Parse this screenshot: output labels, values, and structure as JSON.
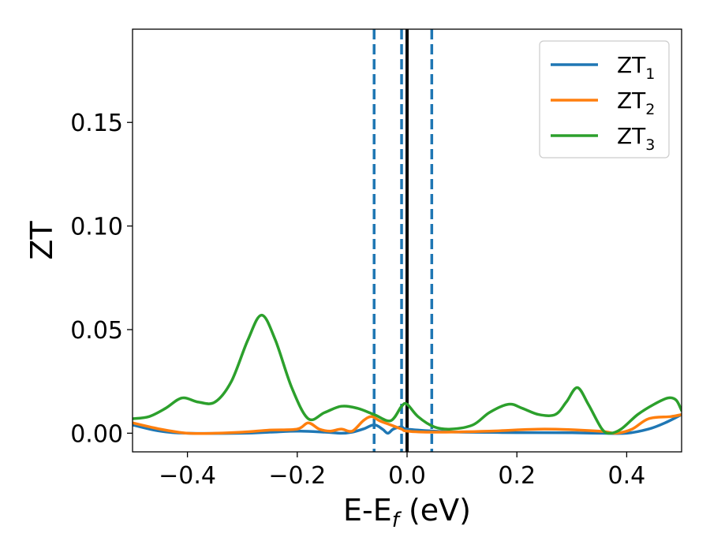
{
  "chart_data": {
    "type": "line",
    "xlabel_main": "E-E",
    "xlabel_sub": "f",
    "xlabel_unit": " (eV)",
    "ylabel": "ZT",
    "xlim": [
      -0.5,
      0.5
    ],
    "ylim": [
      -0.009,
      0.195
    ],
    "xticks": [
      {
        "value": -0.4,
        "label": "−0.4"
      },
      {
        "value": -0.2,
        "label": "−0.2"
      },
      {
        "value": 0.0,
        "label": "0.0"
      },
      {
        "value": 0.2,
        "label": "0.2"
      },
      {
        "value": 0.4,
        "label": "0.4"
      }
    ],
    "yticks": [
      {
        "value": 0.0,
        "label": "0.00"
      },
      {
        "value": 0.05,
        "label": "0.05"
      },
      {
        "value": 0.1,
        "label": "0.10"
      },
      {
        "value": 0.15,
        "label": "0.15"
      }
    ],
    "grid": false,
    "legend_position": "top-right",
    "vlines": [
      {
        "x": -0.06,
        "style": "dashed",
        "color": "#1f77b4"
      },
      {
        "x": -0.01,
        "style": "dashed",
        "color": "#1f77b4"
      },
      {
        "x": 0.045,
        "style": "dashed",
        "color": "#1f77b4"
      },
      {
        "x": 0.0,
        "style": "solid",
        "color": "#000000"
      }
    ],
    "series": [
      {
        "name": "ZT",
        "name_sub": "1",
        "color": "#1f77b4",
        "points": [
          [
            -0.5,
            0.004
          ],
          [
            -0.45,
            0.001
          ],
          [
            -0.4,
            0.0
          ],
          [
            -0.3,
            0.0
          ],
          [
            -0.25,
            0.0005
          ],
          [
            -0.2,
            0.001
          ],
          [
            -0.15,
            0.0005
          ],
          [
            -0.12,
            0.0
          ],
          [
            -0.1,
            0.0005
          ],
          [
            -0.08,
            0.002
          ],
          [
            -0.06,
            0.004
          ],
          [
            -0.045,
            0.002
          ],
          [
            -0.035,
            0.0
          ],
          [
            -0.025,
            0.002
          ],
          [
            -0.01,
            0.003
          ],
          [
            0.0,
            0.002
          ],
          [
            0.05,
            0.001
          ],
          [
            0.1,
            0.0005
          ],
          [
            0.2,
            0.0003
          ],
          [
            0.3,
            0.0002
          ],
          [
            0.35,
            0.0
          ],
          [
            0.4,
            0.0
          ],
          [
            0.44,
            0.002
          ],
          [
            0.47,
            0.005
          ],
          [
            0.5,
            0.009
          ]
        ]
      },
      {
        "name": "ZT",
        "name_sub": "2",
        "color": "#ff7f0e",
        "points": [
          [
            -0.5,
            0.005
          ],
          [
            -0.45,
            0.002
          ],
          [
            -0.4,
            0.0
          ],
          [
            -0.35,
            0.0
          ],
          [
            -0.3,
            0.0005
          ],
          [
            -0.25,
            0.0015
          ],
          [
            -0.2,
            0.002
          ],
          [
            -0.18,
            0.005
          ],
          [
            -0.16,
            0.002
          ],
          [
            -0.14,
            0.001
          ],
          [
            -0.12,
            0.002
          ],
          [
            -0.1,
            0.001
          ],
          [
            -0.08,
            0.006
          ],
          [
            -0.065,
            0.008
          ],
          [
            -0.05,
            0.006
          ],
          [
            -0.03,
            0.004
          ],
          [
            -0.01,
            0.002
          ],
          [
            0.0,
            0.001
          ],
          [
            0.05,
            0.0005
          ],
          [
            0.15,
            0.001
          ],
          [
            0.25,
            0.002
          ],
          [
            0.35,
            0.001
          ],
          [
            0.38,
            0.0
          ],
          [
            0.41,
            0.002
          ],
          [
            0.44,
            0.007
          ],
          [
            0.48,
            0.008
          ],
          [
            0.5,
            0.009
          ]
        ]
      },
      {
        "name": "ZT",
        "name_sub": "3",
        "color": "#2ca02c",
        "points": [
          [
            -0.5,
            0.007
          ],
          [
            -0.47,
            0.008
          ],
          [
            -0.44,
            0.012
          ],
          [
            -0.41,
            0.017
          ],
          [
            -0.38,
            0.015
          ],
          [
            -0.35,
            0.015
          ],
          [
            -0.32,
            0.025
          ],
          [
            -0.29,
            0.045
          ],
          [
            -0.265,
            0.057
          ],
          [
            -0.24,
            0.045
          ],
          [
            -0.21,
            0.022
          ],
          [
            -0.18,
            0.007
          ],
          [
            -0.15,
            0.01
          ],
          [
            -0.12,
            0.013
          ],
          [
            -0.09,
            0.012
          ],
          [
            -0.06,
            0.009
          ],
          [
            -0.03,
            0.006
          ],
          [
            -0.01,
            0.013
          ],
          [
            0.0,
            0.014
          ],
          [
            0.02,
            0.008
          ],
          [
            0.05,
            0.003
          ],
          [
            0.08,
            0.002
          ],
          [
            0.12,
            0.004
          ],
          [
            0.15,
            0.01
          ],
          [
            0.185,
            0.014
          ],
          [
            0.21,
            0.012
          ],
          [
            0.24,
            0.009
          ],
          [
            0.27,
            0.009
          ],
          [
            0.29,
            0.015
          ],
          [
            0.31,
            0.022
          ],
          [
            0.33,
            0.014
          ],
          [
            0.355,
            0.002
          ],
          [
            0.37,
            0.0
          ],
          [
            0.39,
            0.002
          ],
          [
            0.42,
            0.009
          ],
          [
            0.45,
            0.014
          ],
          [
            0.475,
            0.017
          ],
          [
            0.49,
            0.016
          ],
          [
            0.5,
            0.011
          ]
        ]
      }
    ]
  }
}
